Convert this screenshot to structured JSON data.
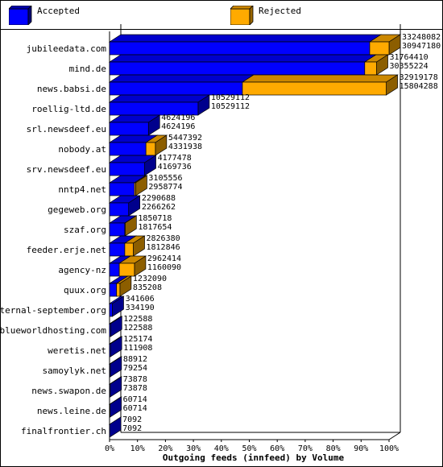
{
  "chart_data": {
    "type": "bar",
    "orientation": "horizontal",
    "stacked": true,
    "xlabel": "Outgoing feeds (innfeed) by Volume",
    "xlim": [
      0,
      100
    ],
    "x_ticks": [
      "0%",
      "10%",
      "20%",
      "30%",
      "40%",
      "50%",
      "60%",
      "70%",
      "80%",
      "90%",
      "100%"
    ],
    "legend_position": "top",
    "grid": false,
    "categories": [
      "jubileedata.com",
      "mind.de",
      "news.babsi.de",
      "roellig-ltd.de",
      "srl.newsdeef.eu",
      "nobody.at",
      "srv.newsdeef.eu",
      "nntp4.net",
      "gegeweb.org",
      "szaf.org",
      "feeder.erje.net",
      "agency-nz",
      "quux.org",
      "eternal-september.org",
      "blueworldhosting.com",
      "weretis.net",
      "samoylyk.net",
      "news.swapon.de",
      "news.leine.de",
      "finalfrontier.ch"
    ],
    "totals": [
      33248082,
      31764410,
      32919178,
      10529112,
      4624196,
      5447392,
      4177478,
      3105556,
      2290688,
      1850718,
      2826380,
      2962414,
      1232090,
      341606,
      122588,
      125174,
      88912,
      73878,
      60714,
      7092
    ],
    "series": [
      {
        "name": "Accepted",
        "color": "#0000ff",
        "values": [
          30947180,
          30355224,
          15804288,
          10529112,
          4624196,
          4331938,
          4169736,
          2958774,
          2266262,
          1817654,
          1812846,
          1160090,
          835208,
          334190,
          122588,
          111908,
          79254,
          73878,
          60714,
          7092
        ]
      },
      {
        "name": "Rejected",
        "color": "#ffaa00"
      }
    ]
  },
  "legend": {
    "accepted": "Accepted",
    "rejected": "Rejected"
  }
}
